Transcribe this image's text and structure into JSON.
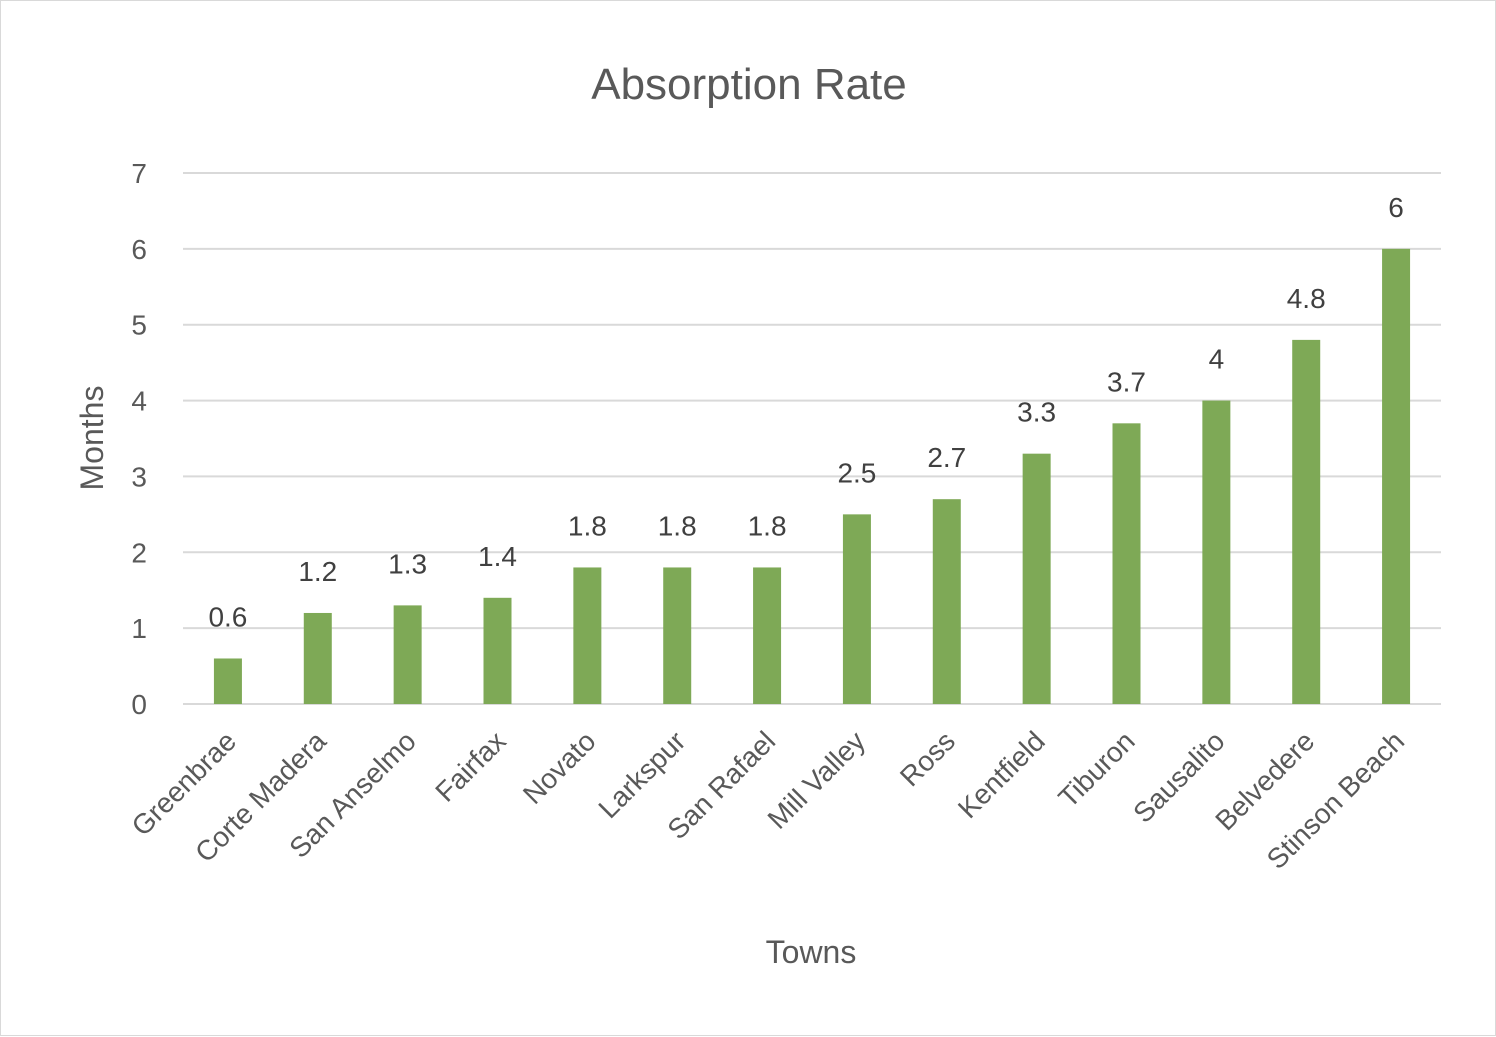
{
  "chart_data": {
    "type": "bar",
    "title": "Absorption Rate",
    "xlabel": "Towns",
    "ylabel": "Months",
    "ylim": [
      0,
      7
    ],
    "y_ticks": [
      "0",
      "1",
      "2",
      "3",
      "4",
      "5",
      "6",
      "7"
    ],
    "grid": true,
    "legend": "none",
    "bar_color": "#7ea956",
    "categories": [
      "Greenbrae",
      "Corte Madera",
      "San Anselmo",
      "Fairfax",
      "Novato",
      "Larkspur",
      "San Rafael",
      "Mill Valley",
      "Ross",
      "Kentfield",
      "Tiburon",
      "Sausalito",
      "Belvedere",
      "Stinson Beach"
    ],
    "values": [
      0.6,
      1.2,
      1.3,
      1.4,
      1.8,
      1.8,
      1.8,
      2.5,
      2.7,
      3.3,
      3.7,
      4,
      4.8,
      6
    ],
    "data_labels": [
      "0.6",
      "1.2",
      "1.3",
      "1.4",
      "1.8",
      "1.8",
      "1.8",
      "2.5",
      "2.7",
      "3.3",
      "3.7",
      "4",
      "4.8",
      "6"
    ]
  }
}
